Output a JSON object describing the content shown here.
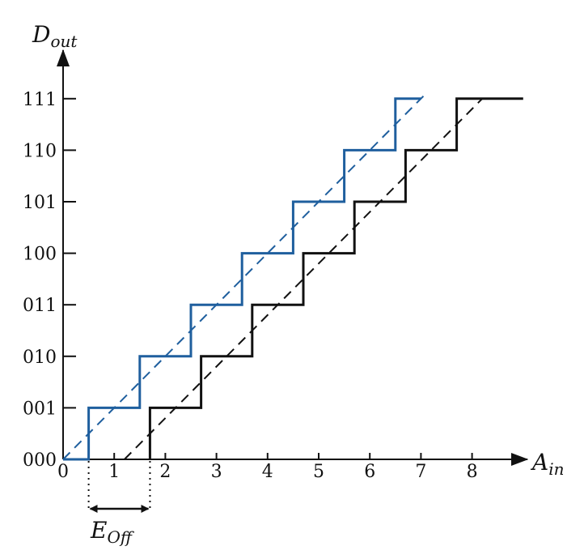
{
  "chart_data": {
    "type": "line",
    "title": "",
    "xlabel": {
      "main": "A",
      "sub": "in"
    },
    "ylabel": {
      "main": "D",
      "sub": "out"
    },
    "x_ticks": [
      "0",
      "1",
      "2",
      "3",
      "4",
      "5",
      "6",
      "7",
      "8"
    ],
    "y_ticks": [
      "000",
      "001",
      "010",
      "011",
      "100",
      "101",
      "110",
      "111"
    ],
    "xlim": [
      0,
      9
    ],
    "ylim": [
      0,
      7.5
    ],
    "grid": false,
    "legend": "none",
    "series": [
      {
        "style": "step",
        "color": "#1f5f9e",
        "x": [
          0,
          0.5,
          0.5,
          1.5,
          1.5,
          2.5,
          2.5,
          3.5,
          3.5,
          4.5,
          4.5,
          5.5,
          5.5,
          6.5,
          6.5,
          7.0
        ],
        "y": [
          0,
          0,
          1,
          1,
          2,
          2,
          3,
          3,
          4,
          4,
          5,
          5,
          6,
          6,
          7,
          7
        ]
      },
      {
        "style": "dashed",
        "color": "#1f5f9e",
        "x": [
          0,
          7.1
        ],
        "y": [
          0,
          7.1
        ]
      },
      {
        "style": "step",
        "color": "#111111",
        "x": [
          1.7,
          1.7,
          2.7,
          2.7,
          3.7,
          3.7,
          4.7,
          4.7,
          5.7,
          5.7,
          6.7,
          6.7,
          7.7,
          7.7,
          9.0
        ],
        "y": [
          0,
          1,
          1,
          2,
          2,
          3,
          3,
          4,
          4,
          5,
          5,
          6,
          6,
          7,
          7
        ]
      },
      {
        "style": "dashed",
        "color": "#111111",
        "x": [
          1.2,
          8.2
        ],
        "y": [
          0,
          7
        ]
      }
    ],
    "annotations": [
      {
        "label": {
          "main": "E",
          "sub": "Off"
        },
        "type": "double-arrow",
        "x_from": 0.5,
        "x_to": 1.7
      }
    ]
  }
}
